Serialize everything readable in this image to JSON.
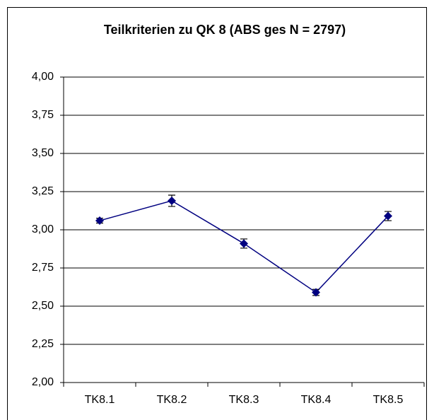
{
  "chart_data": {
    "type": "line",
    "title": "Teilkriterien zu QK 8 (ABS ges N = 2797)",
    "categories": [
      "TK8.1",
      "TK8.2",
      "TK8.3",
      "TK8.4",
      "TK8.5"
    ],
    "series": [
      {
        "color": "#000080",
        "values": [
          3.06,
          3.19,
          2.91,
          2.59,
          3.09
        ],
        "errors": [
          0.016,
          0.037,
          0.03,
          0.02,
          0.03
        ]
      }
    ],
    "ylim": [
      2,
      4
    ],
    "yticks": [
      {
        "value": 2,
        "label": "2,00"
      },
      {
        "value": 2.25,
        "label": "2,25"
      },
      {
        "value": 2.5,
        "label": "2,50"
      },
      {
        "value": 2.75,
        "label": "2,75"
      },
      {
        "value": 3,
        "label": "3,00"
      },
      {
        "value": 3.25,
        "label": "3,25"
      },
      {
        "value": 3.5,
        "label": "3,50"
      },
      {
        "value": 3.75,
        "label": "3,75"
      },
      {
        "value": 4,
        "label": "4,00"
      }
    ],
    "grid": true
  }
}
